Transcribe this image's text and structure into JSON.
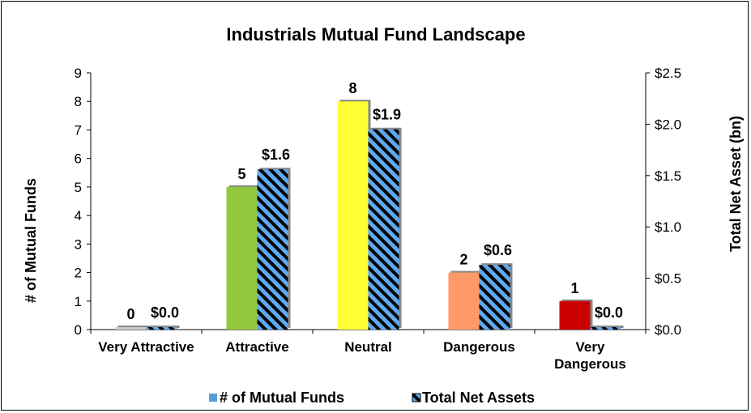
{
  "chart_data": {
    "type": "bar",
    "title": "Industrials Mutual Fund Landscape",
    "ylabel": "# of Mutual Funds",
    "y2label": "Total Net Asset (bn)",
    "categories": [
      "Very Attractive",
      "Attractive",
      "Neutral",
      "Dangerous",
      "Very Dangerous"
    ],
    "ylim": [
      0,
      9
    ],
    "y2lim": [
      0,
      2.5
    ],
    "yticks": [
      "0",
      "1",
      "2",
      "3",
      "4",
      "5",
      "6",
      "7",
      "8",
      "9"
    ],
    "y2ticks": [
      "$0.0",
      "$0.5",
      "$1.0",
      "$1.5",
      "$2.0",
      "$2.5"
    ],
    "series": [
      {
        "name": "# of Mutual Funds",
        "axis": "left",
        "values": [
          0,
          5,
          8,
          2,
          1
        ],
        "labels": [
          "0",
          "5",
          "8",
          "2",
          "1"
        ],
        "colors": [
          "#9bbb59",
          "#92c83e",
          "#ffff33",
          "#ff9966",
          "#cc0000"
        ]
      },
      {
        "name": "Total Net Assets",
        "axis": "right",
        "values": [
          0.0,
          1.56,
          1.95,
          0.63,
          0.01
        ],
        "labels": [
          "$0.0",
          "$1.6",
          "$1.9",
          "$0.6",
          "$0.0"
        ],
        "pattern": "blue-black-diagonal-stripes"
      }
    ],
    "legend": {
      "placement": "bottom",
      "entries": [
        "# of Mutual Funds",
        "Total Net Assets"
      ]
    },
    "legend_swatch_color": "#5b9bd5",
    "grid": false
  }
}
